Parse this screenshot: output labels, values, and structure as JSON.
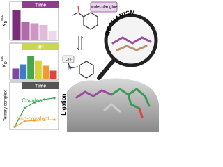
{
  "panels": [
    {
      "header": "Time",
      "header_color": "#8e3f8c",
      "ylabel": {
        "main": "K",
        "sub": "D",
        "sup": "app"
      },
      "values": [
        100,
        62,
        56,
        50,
        30
      ],
      "colors": [
        "#7b2d78",
        "#b06aa8",
        "#cd96c4",
        "#e0bcd9",
        "#eed9ea"
      ]
    },
    {
      "header": "pH",
      "header_color": "#c8d84a",
      "ylabel": {
        "main": "K",
        "sub": "D",
        "sup": "app"
      },
      "values": [
        40,
        55,
        85,
        70,
        50,
        32
      ],
      "colors": [
        "#7a4aa0",
        "#3f7cc4",
        "#4aa84a",
        "#d8d23a",
        "#f09a30",
        "#e0453a"
      ]
    },
    {
      "header": "Time",
      "header_color": "#555555",
      "ylabel": "Ternary complex",
      "series": [
        {
          "name": "Covalent",
          "color": "#3aa655",
          "values": [
            5,
            55,
            70,
            78,
            82
          ]
        },
        {
          "name": "Non-covalent",
          "color": "#f0a030",
          "values": [
            5,
            20,
            22,
            23,
            24
          ]
        }
      ]
    }
  ],
  "molecule_label": "Molecular glue",
  "residue_label": "Lys",
  "mechanism": "MECHANISM",
  "ligation": "Ligation"
}
